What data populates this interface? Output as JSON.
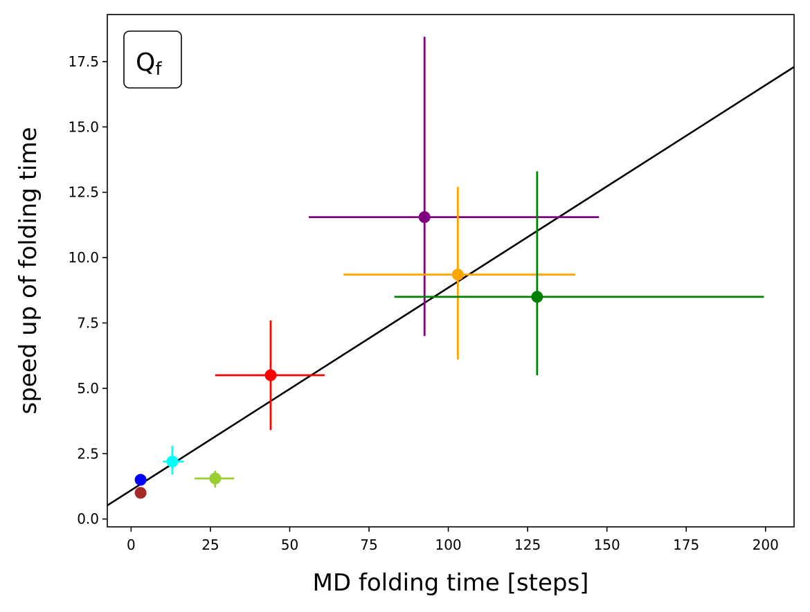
{
  "chart_data": {
    "type": "scatter",
    "xlabel": "MD folding time [steps]",
    "ylabel": "speed up of folding time",
    "xlim": [
      -7.5,
      209
    ],
    "ylim": [
      -0.3,
      19.3
    ],
    "x_ticks": [
      0,
      25,
      50,
      75,
      100,
      125,
      150,
      175,
      200
    ],
    "y_ticks": [
      0.0,
      2.5,
      5.0,
      7.5,
      10.0,
      12.5,
      15.0,
      17.5
    ],
    "x_tick_labels": [
      "0",
      "25",
      "50",
      "75",
      "100",
      "125",
      "150",
      "175",
      "200"
    ],
    "y_tick_labels": [
      "0.0",
      "2.5",
      "5.0",
      "7.5",
      "10.0",
      "12.5",
      "15.0",
      "17.5"
    ],
    "grid": false,
    "legend": "none",
    "annotation": {
      "text": "Q",
      "subscript": "f",
      "placement": "top-left"
    },
    "points": [
      {
        "color": "#a52a2a",
        "x": 3.0,
        "y": 1.0,
        "xerr": [
          0,
          0
        ],
        "yerr": [
          0,
          0
        ]
      },
      {
        "color": "#0000ff",
        "x": 3.0,
        "y": 1.5,
        "xerr": [
          0,
          0
        ],
        "yerr": [
          0,
          0
        ]
      },
      {
        "color": "#00ffff",
        "x": 13.0,
        "y": 2.2,
        "xerr": [
          3.0,
          3.5
        ],
        "yerr": [
          0.5,
          0.6
        ]
      },
      {
        "color": "#9acd32",
        "x": 26.5,
        "y": 1.55,
        "xerr": [
          6.5,
          6.0
        ],
        "yerr": [
          0.35,
          0.3
        ]
      },
      {
        "color": "#ff0000",
        "x": 44.0,
        "y": 5.5,
        "xerr": [
          17.5,
          17.0
        ],
        "yerr": [
          2.1,
          2.1
        ]
      },
      {
        "color": "#800080",
        "x": 92.5,
        "y": 11.55,
        "xerr": [
          36.5,
          55.0
        ],
        "yerr": [
          4.55,
          6.9
        ]
      },
      {
        "color": "#ffa500",
        "x": 103.0,
        "y": 9.35,
        "xerr": [
          36.0,
          37.0
        ],
        "yerr": [
          3.25,
          3.35
        ]
      },
      {
        "color": "#008000",
        "x": 128.0,
        "y": 8.5,
        "xerr": [
          45.0,
          71.5
        ],
        "yerr": [
          3.0,
          4.8
        ]
      }
    ],
    "fit_line": {
      "color": "#000000",
      "slope": 0.0775,
      "intercept": 1.1
    }
  }
}
